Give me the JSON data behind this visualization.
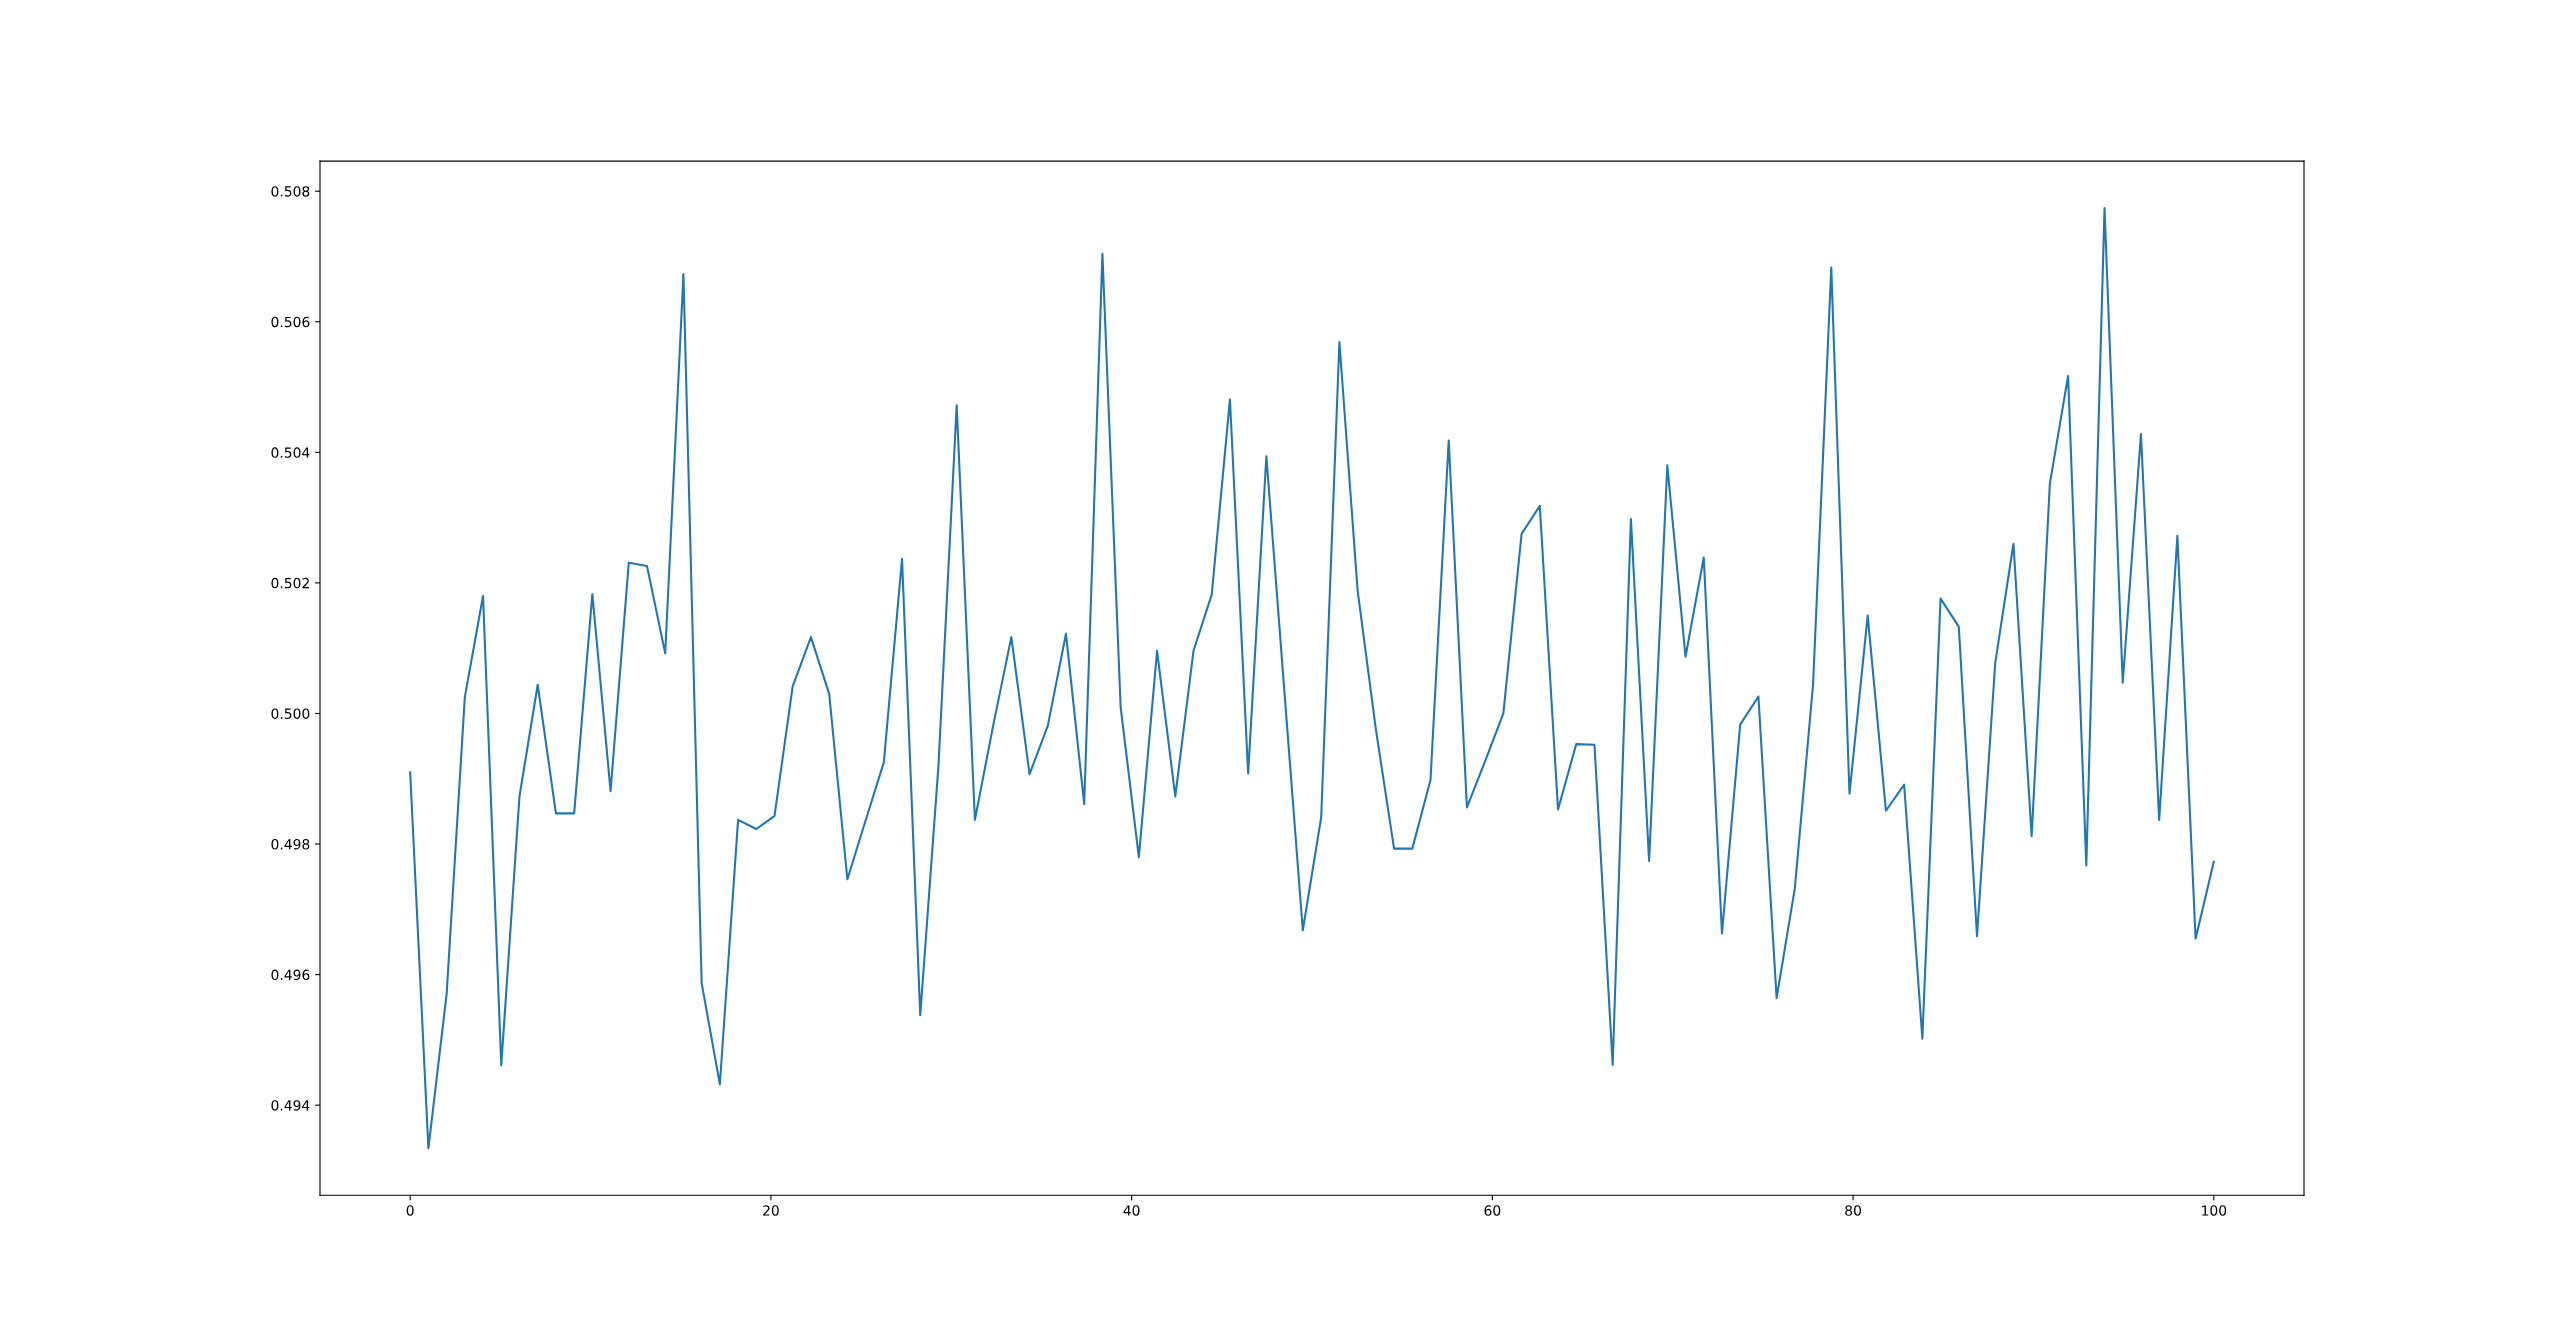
{
  "chart_data": {
    "type": "line",
    "x": [
      0,
      1.01,
      2.02,
      3.03,
      4.04,
      5.05,
      6.06,
      7.07,
      8.08,
      9.09,
      10.1,
      11.11,
      12.12,
      13.13,
      14.14,
      15.15,
      16.16,
      17.17,
      18.18,
      19.19,
      20.2,
      21.21,
      22.22,
      23.23,
      24.24,
      25.25,
      26.26,
      27.27,
      28.28,
      29.29,
      30.3,
      31.31,
      32.32,
      33.33,
      34.34,
      35.35,
      36.36,
      37.37,
      38.38,
      39.39,
      40.4,
      41.41,
      42.42,
      43.43,
      44.44,
      45.45,
      46.46,
      47.47,
      48.48,
      49.49,
      50.51,
      51.52,
      52.53,
      53.54,
      54.55,
      55.56,
      56.57,
      57.58,
      58.59,
      59.6,
      60.61,
      61.62,
      62.63,
      63.64,
      64.65,
      65.66,
      66.67,
      67.68,
      68.69,
      69.7,
      70.71,
      71.72,
      72.73,
      73.74,
      74.75,
      75.76,
      76.77,
      77.78,
      78.79,
      79.8,
      80.81,
      81.82,
      82.83,
      83.84,
      84.85,
      85.86,
      86.87,
      87.88,
      88.89,
      89.9,
      90.91,
      91.92,
      92.93,
      93.94,
      94.95,
      95.96,
      96.97,
      97.98,
      98.99,
      100
    ],
    "series": [
      {
        "color": "#1f77b4",
        "values": [
          0.4991,
          0.49334,
          0.4957,
          0.50025,
          0.5018,
          0.49461,
          0.49873,
          0.50044,
          0.49847,
          0.49847,
          0.50183,
          0.49881,
          0.50231,
          0.50226,
          0.50092,
          0.50673,
          0.49587,
          0.49432,
          0.49837,
          0.49823,
          0.49843,
          0.50042,
          0.50117,
          0.5003,
          0.49746,
          0.49836,
          0.49925,
          0.50237,
          0.49538,
          0.4992,
          0.50472,
          0.49837,
          0.49981,
          0.50117,
          0.49907,
          0.49981,
          0.50122,
          0.49861,
          0.50704,
          0.5001,
          0.4978,
          0.50096,
          0.49873,
          0.50096,
          0.50182,
          0.50481,
          0.49908,
          0.50394,
          0.5003,
          0.49668,
          0.49841,
          0.50569,
          0.50188,
          0.49976,
          0.49793,
          0.49793,
          0.49898,
          0.50418,
          0.49856,
          0.49927,
          0.5,
          0.50275,
          0.50318,
          0.49853,
          0.49953,
          0.49952,
          0.49462,
          0.50298,
          0.49774,
          0.5038,
          0.50087,
          0.50239,
          0.49663,
          0.49983,
          0.50026,
          0.49564,
          0.49732,
          0.50044,
          0.50683,
          0.49877,
          0.5015,
          0.49851,
          0.49891,
          0.49502,
          0.50176,
          0.50133,
          0.49659,
          0.50077,
          0.5026,
          0.49812,
          0.50352,
          0.50517,
          0.49767,
          0.50774,
          0.50047,
          0.50428,
          0.49837,
          0.50272,
          0.49655,
          0.49773
        ]
      }
    ],
    "xlim": [
      -5,
      105
    ],
    "ylim": [
      0.49262,
      0.50846
    ],
    "xticks": [
      0,
      20,
      40,
      60,
      80,
      100
    ],
    "yticks": [
      0.494,
      0.496,
      0.498,
      {
        "value": 0.5,
        "label": "0.500"
      },
      0.502,
      0.504,
      0.506,
      0.508
    ],
    "grid": false,
    "marker": "none",
    "line_style": "solid"
  }
}
